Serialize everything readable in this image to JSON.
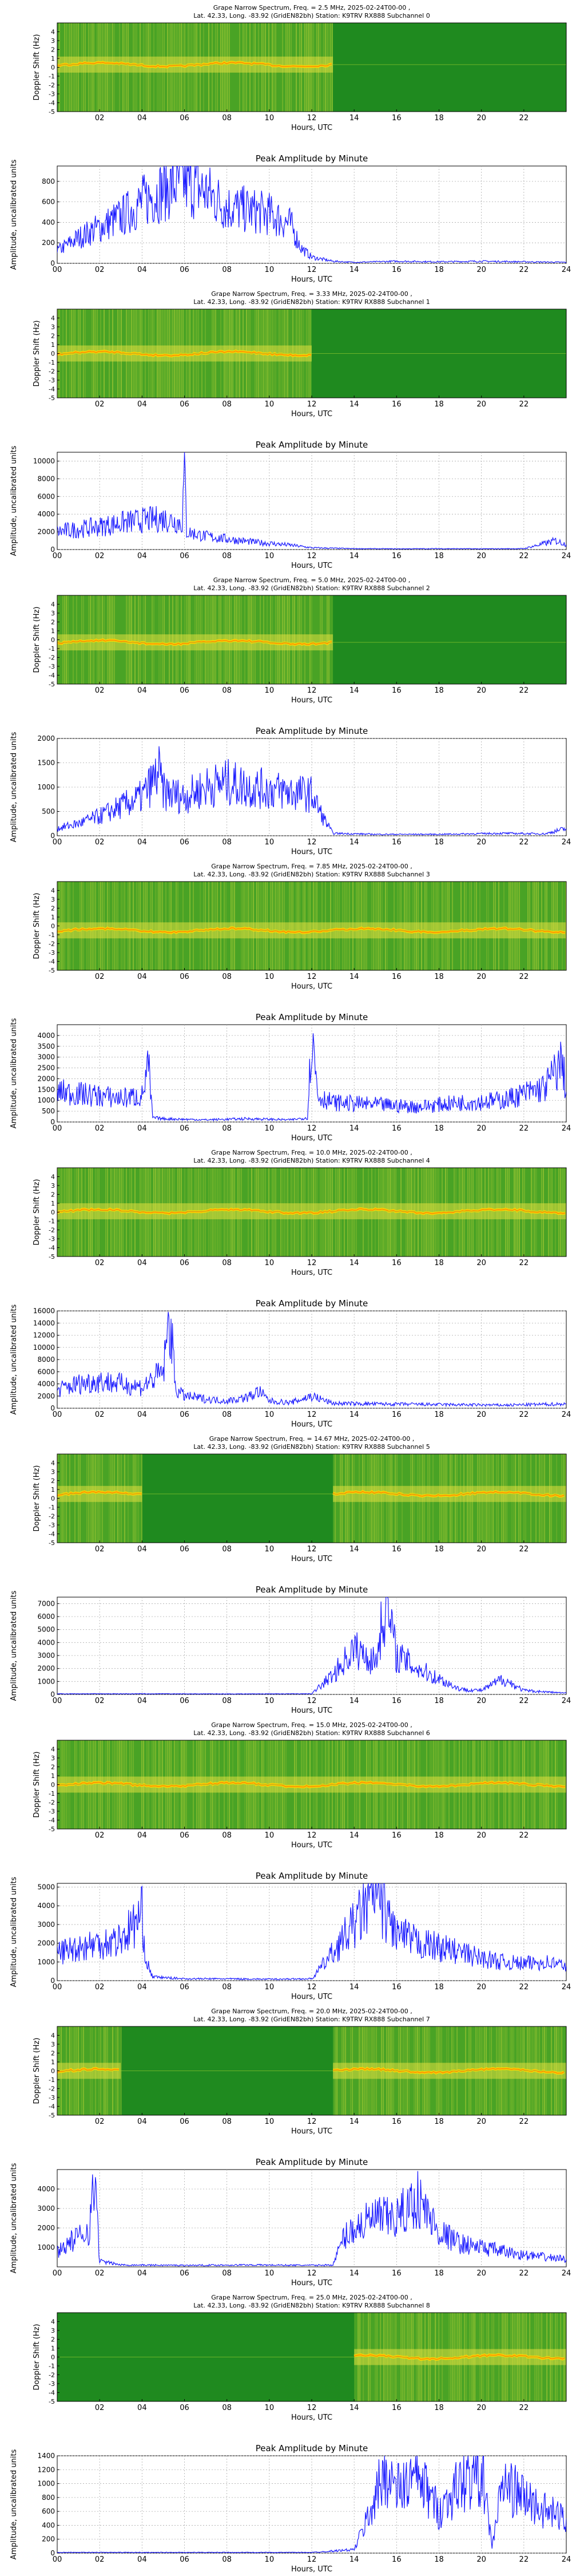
{
  "labels": {
    "spec_ylabel": "Doppler Shift (Hz)",
    "amp_ylabel": "Amplitude, uncalibrated units",
    "xlabel": "Hours, UTC",
    "amp_title": "Peak Amplitude by Minute",
    "spec_title_line2": "Lat.  42.33, Long. -83.92 (GridEN82bh) Station: K9TRV RX888 Subchannel {n}",
    "spec_title_line1": "Grape Narrow Spectrum, Freq. = {f} MHz, 2025-02-24T00-00 ,"
  },
  "colors": {
    "spectrogram_bg": "#1f8a1f",
    "trace": "#1a1aff",
    "carrier": "#ffd400"
  },
  "x_axis": {
    "range": [
      0,
      24
    ],
    "spectrogram_ticks": [
      "02",
      "04",
      "06",
      "08",
      "10",
      "12",
      "14",
      "16",
      "18",
      "20",
      "22"
    ],
    "amplitude_ticks": [
      "00",
      "02",
      "04",
      "06",
      "08",
      "10",
      "12",
      "14",
      "16",
      "18",
      "20",
      "22",
      "24"
    ]
  },
  "doppler_axis": {
    "range": [
      -5,
      5
    ],
    "ticks": [
      "4",
      "3",
      "2",
      "1",
      "0",
      "-1",
      "-2",
      "-3",
      "-4",
      "-5"
    ]
  },
  "chart_data": [
    {
      "type": "heatmap",
      "title_line1": "Grape Narrow Spectrum, Freq. = 2.5 MHz, 2025-02-24T00-00 ,",
      "title_line2": "Lat.  42.33, Long. -83.92 (GridEN82bh) Station: K9TRV RX888 Subchannel 0",
      "xlabel": "Hours, UTC",
      "ylabel": "Doppler Shift (Hz)",
      "xlim": [
        0,
        24
      ],
      "ylim": [
        -5,
        5
      ],
      "active_hours": [
        [
          0,
          13
        ]
      ],
      "carrier_hz": 0.3
    },
    {
      "type": "line",
      "title": "Peak Amplitude by Minute",
      "xlabel": "Hours, UTC",
      "ylabel": "Amplitude, uncalibrated units",
      "xlim": [
        0,
        24
      ],
      "ylim": [
        0,
        950
      ],
      "yticks": [
        0,
        200,
        400,
        600,
        800
      ],
      "x": [
        0,
        1,
        2,
        3,
        4,
        5,
        6,
        7,
        8,
        9,
        10,
        11,
        11.5,
        12,
        13,
        14,
        16,
        18,
        20,
        22,
        24
      ],
      "y": [
        120,
        250,
        350,
        450,
        600,
        720,
        800,
        700,
        550,
        520,
        480,
        380,
        150,
        60,
        20,
        10,
        20,
        15,
        20,
        15,
        10
      ]
    },
    {
      "type": "heatmap",
      "title_line1": "Grape Narrow Spectrum, Freq. = 3.33 MHz, 2025-02-24T00-00 ,",
      "title_line2": "Lat.  42.33, Long. -83.92 (GridEN82bh) Station: K9TRV RX888 Subchannel 1",
      "xlabel": "Hours, UTC",
      "ylabel": "Doppler Shift (Hz)",
      "xlim": [
        0,
        24
      ],
      "ylim": [
        -5,
        5
      ],
      "active_hours": [
        [
          0,
          12
        ]
      ],
      "carrier_hz": 0.0
    },
    {
      "type": "line",
      "title": "Peak Amplitude by Minute",
      "xlabel": "Hours, UTC",
      "ylabel": "Amplitude, uncalibrated units",
      "xlim": [
        0,
        24
      ],
      "ylim": [
        0,
        11000
      ],
      "yticks": [
        0,
        2000,
        4000,
        6000,
        8000,
        10000
      ],
      "x": [
        0,
        1,
        2,
        3,
        4,
        5,
        5.9,
        6,
        6.1,
        7,
        8,
        9,
        10,
        11,
        12,
        14,
        16,
        18,
        20,
        22,
        23.5,
        24
      ],
      "y": [
        2000,
        2300,
        2600,
        3000,
        3300,
        3500,
        3000,
        10200,
        2000,
        1500,
        1200,
        900,
        700,
        500,
        200,
        100,
        80,
        100,
        80,
        100,
        1000,
        600
      ]
    },
    {
      "type": "heatmap",
      "title_line1": "Grape Narrow Spectrum, Freq. = 5.0 MHz, 2025-02-24T00-00 ,",
      "title_line2": "Lat.  42.33, Long. -83.92 (GridEN82bh) Station: K9TRV RX888 Subchannel 2",
      "xlabel": "Hours, UTC",
      "ylabel": "Doppler Shift (Hz)",
      "xlim": [
        0,
        24
      ],
      "ylim": [
        -5,
        5
      ],
      "active_hours": [
        [
          0,
          13
        ]
      ],
      "carrier_hz": -0.3
    },
    {
      "type": "line",
      "title": "Peak Amplitude by Minute",
      "xlabel": "Hours, UTC",
      "ylabel": "Amplitude, uncalibrated units",
      "xlim": [
        0,
        24
      ],
      "ylim": [
        0,
        2000
      ],
      "yticks": [
        0,
        500,
        1000,
        1500,
        2000
      ],
      "x": [
        0,
        1,
        2,
        3,
        4,
        4.8,
        5,
        6,
        7,
        8,
        9,
        10,
        11,
        12,
        12.5,
        13,
        15,
        18,
        21,
        23,
        24
      ],
      "y": [
        150,
        250,
        400,
        600,
        800,
        1300,
        900,
        800,
        1000,
        1100,
        1000,
        950,
        900,
        850,
        400,
        50,
        30,
        30,
        50,
        40,
        150
      ]
    },
    {
      "type": "heatmap",
      "title_line1": "Grape Narrow Spectrum, Freq. = 7.85 MHz, 2025-02-24T00-00 ,",
      "title_line2": "Lat.  42.33, Long. -83.92 (GridEN82bh) Station: K9TRV RX888 Subchannel 3",
      "xlabel": "Hours, UTC",
      "ylabel": "Doppler Shift (Hz)",
      "xlim": [
        0,
        24
      ],
      "ylim": [
        -5,
        5
      ],
      "active_hours": [
        [
          0,
          24
        ]
      ],
      "carrier_hz": -0.5
    },
    {
      "type": "line",
      "title": "Peak Amplitude by Minute",
      "xlabel": "Hours, UTC",
      "ylabel": "Amplitude, uncalibrated units",
      "xlim": [
        0,
        24
      ],
      "ylim": [
        0,
        4500
      ],
      "yticks": [
        0,
        500,
        1000,
        1500,
        2000,
        2500,
        3000,
        3500,
        4000
      ],
      "x": [
        0,
        1,
        2,
        3,
        4,
        4.3,
        4.5,
        5,
        7,
        9,
        11,
        11.8,
        12,
        12.3,
        13,
        15,
        17,
        19,
        21,
        23,
        23.8,
        24
      ],
      "y": [
        1400,
        1300,
        1200,
        1100,
        1200,
        2600,
        200,
        150,
        100,
        150,
        100,
        200,
        4100,
        1200,
        900,
        800,
        700,
        900,
        1000,
        1600,
        2800,
        1400
      ]
    },
    {
      "type": "heatmap",
      "title_line1": "Grape Narrow Spectrum, Freq. = 10.0 MHz, 2025-02-24T00-00 ,",
      "title_line2": "Lat.  42.33, Long. -83.92 (GridEN82bh) Station: K9TRV RX888 Subchannel 4",
      "xlabel": "Hours, UTC",
      "ylabel": "Doppler Shift (Hz)",
      "xlim": [
        0,
        24
      ],
      "ylim": [
        -5,
        5
      ],
      "active_hours": [
        [
          0,
          24
        ]
      ],
      "carrier_hz": 0.1
    },
    {
      "type": "line",
      "title": "Peak Amplitude by Minute",
      "xlabel": "Hours, UTC",
      "ylabel": "Amplitude, uncalibrated units",
      "xlim": [
        0,
        24
      ],
      "ylim": [
        0,
        16000
      ],
      "yticks": [
        0,
        2000,
        4000,
        6000,
        8000,
        10000,
        12000,
        14000,
        16000
      ],
      "x": [
        0,
        1,
        2,
        3,
        4,
        5,
        5.3,
        5.6,
        6,
        7,
        8,
        9,
        9.5,
        10,
        11,
        12,
        13,
        15,
        18,
        21,
        24
      ],
      "y": [
        3000,
        4000,
        4500,
        4000,
        3500,
        6000,
        15000,
        3000,
        2000,
        1500,
        1200,
        1800,
        2800,
        1200,
        900,
        2000,
        800,
        700,
        600,
        500,
        700
      ]
    },
    {
      "type": "heatmap",
      "title_line1": "Grape Narrow Spectrum, Freq. = 14.67 MHz, 2025-02-24T00-00 ,",
      "title_line2": "Lat.  42.33, Long. -83.92 (GridEN82bh) Station: K9TRV RX888 Subchannel 5",
      "xlabel": "Hours, UTC",
      "ylabel": "Doppler Shift (Hz)",
      "xlim": [
        0,
        24
      ],
      "ylim": [
        -5,
        5
      ],
      "active_hours": [
        [
          0,
          4
        ],
        [
          13,
          24
        ]
      ],
      "carrier_hz": 0.5
    },
    {
      "type": "line",
      "title": "Peak Amplitude by Minute",
      "xlabel": "Hours, UTC",
      "ylabel": "Amplitude, uncalibrated units",
      "xlim": [
        0,
        24
      ],
      "ylim": [
        0,
        7500
      ],
      "yticks": [
        0,
        1000,
        2000,
        3000,
        4000,
        5000,
        6000,
        7000
      ],
      "x": [
        0,
        4,
        8,
        12,
        13,
        14,
        15,
        15.5,
        16,
        17,
        18,
        19,
        20,
        21,
        22,
        23,
        24
      ],
      "y": [
        50,
        50,
        40,
        50,
        1500,
        3500,
        2500,
        7200,
        3000,
        2000,
        1200,
        400,
        300,
        1200,
        300,
        200,
        100
      ]
    },
    {
      "type": "heatmap",
      "title_line1": "Grape Narrow Spectrum, Freq. = 15.0 MHz, 2025-02-24T00-00 ,",
      "title_line2": "Lat.  42.33, Long. -83.92 (GridEN82bh) Station: K9TRV RX888 Subchannel 6",
      "xlabel": "Hours, UTC",
      "ylabel": "Doppler Shift (Hz)",
      "xlim": [
        0,
        24
      ],
      "ylim": [
        -5,
        5
      ],
      "active_hours": [
        [
          0,
          24
        ]
      ],
      "carrier_hz": 0.0
    },
    {
      "type": "line",
      "title": "Peak Amplitude by Minute",
      "xlabel": "Hours, UTC",
      "ylabel": "Amplitude, uncalibrated units",
      "xlim": [
        0,
        24
      ],
      "ylim": [
        0,
        5200
      ],
      "yticks": [
        0,
        1000,
        2000,
        3000,
        4000,
        5000
      ],
      "x": [
        0,
        1,
        2,
        3,
        4,
        4.2,
        4.5,
        6,
        8,
        10,
        12,
        13,
        14,
        15,
        16,
        17,
        18,
        19,
        20,
        21,
        22,
        23,
        24
      ],
      "y": [
        1500,
        1800,
        2000,
        2200,
        3500,
        1000,
        200,
        100,
        100,
        80,
        100,
        1500,
        3000,
        4700,
        2500,
        2000,
        1800,
        1500,
        1200,
        1000,
        900,
        1000,
        800
      ]
    },
    {
      "type": "heatmap",
      "title_line1": "Grape Narrow Spectrum, Freq. = 20.0 MHz, 2025-02-24T00-00 ,",
      "title_line2": "Lat.  42.33, Long. -83.92 (GridEN82bh) Station: K9TRV RX888 Subchannel 7",
      "xlabel": "Hours, UTC",
      "ylabel": "Doppler Shift (Hz)",
      "xlim": [
        0,
        24
      ],
      "ylim": [
        -5,
        5
      ],
      "active_hours": [
        [
          0,
          3
        ],
        [
          13,
          24
        ]
      ],
      "carrier_hz": 0.0
    },
    {
      "type": "line",
      "title": "Peak Amplitude by Minute",
      "xlabel": "Hours, UTC",
      "ylabel": "Amplitude, uncalibrated units",
      "xlim": [
        0,
        24
      ],
      "ylim": [
        0,
        5000
      ],
      "yticks": [
        1000,
        2000,
        3000,
        4000
      ],
      "x": [
        0,
        0.5,
        1,
        1.5,
        1.8,
        2,
        3,
        6,
        9,
        12,
        13,
        13.5,
        14,
        15,
        16,
        17,
        18,
        19,
        20,
        21,
        22,
        23,
        24
      ],
      "y": [
        800,
        1200,
        1500,
        2000,
        4500,
        300,
        100,
        80,
        100,
        80,
        100,
        1500,
        2000,
        2500,
        2500,
        3500,
        1800,
        1200,
        1000,
        800,
        600,
        500,
        400
      ]
    },
    {
      "type": "heatmap",
      "title_line1": "Grape Narrow Spectrum, Freq. = 25.0 MHz, 2025-02-24T00-00 ,",
      "title_line2": "Lat.  42.33, Long. -83.92 (GridEN82bh) Station: K9TRV RX888 Subchannel 8",
      "xlabel": "Hours, UTC",
      "ylabel": "Doppler Shift (Hz)",
      "xlim": [
        0,
        24
      ],
      "ylim": [
        -5,
        5
      ],
      "active_hours": [
        [
          14,
          24
        ]
      ],
      "carrier_hz": 0.0
    },
    {
      "type": "line",
      "title": "Peak Amplitude by Minute",
      "xlabel": "Hours, UTC",
      "ylabel": "Amplitude, uncalibrated units",
      "xlim": [
        0,
        24
      ],
      "ylim": [
        0,
        1400
      ],
      "yticks": [
        0,
        200,
        400,
        600,
        800,
        1000,
        1200,
        1400
      ],
      "x": [
        0,
        4,
        8,
        12,
        14,
        14.5,
        15,
        15.5,
        16,
        17,
        18,
        19,
        20,
        20.5,
        21,
        22,
        23,
        24
      ],
      "y": [
        10,
        10,
        10,
        10,
        50,
        400,
        800,
        1200,
        900,
        1100,
        600,
        1000,
        1200,
        100,
        1000,
        800,
        600,
        500
      ]
    }
  ]
}
